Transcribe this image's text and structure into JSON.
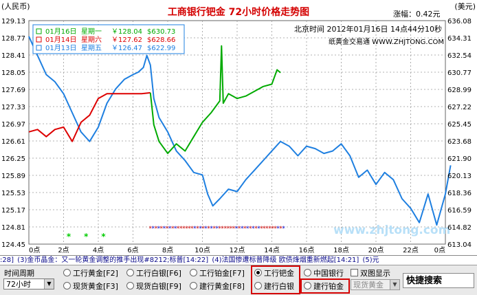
{
  "header": {
    "title": "工商银行钯金 72小时价格走势图",
    "left_unit": "(人民币)",
    "right_unit": "(美元)",
    "change": "涨幅：0.42元",
    "time": "北京时间 2012年01月16日 14点44分10秒",
    "source": "纸黄金交易通 WWW.ZHJTONG.COM",
    "watermark": "www.zhjtong.com"
  },
  "legend": [
    {
      "date": "01月16日",
      "weekday": "星期一",
      "cny": "￥128.04",
      "usd": "$630.73",
      "color": "#00aa00"
    },
    {
      "date": "01月14日",
      "weekday": "星期六",
      "cny": "￥127.62",
      "usd": "$628.66",
      "color": "#dd0000"
    },
    {
      "date": "01月13日",
      "weekday": "星期五",
      "cny": "￥126.47",
      "usd": "$622.99",
      "color": "#1e7fe0"
    }
  ],
  "chart_data": {
    "type": "line",
    "title": "工商银行钯金 72小时价格走势图",
    "x_ticks": [
      "0点",
      "2点",
      "4点",
      "6点",
      "8点",
      "10点",
      "12点",
      "14点",
      "16点",
      "18点",
      "20点",
      "22点",
      "0点"
    ],
    "y_left_ticks": [
      "129.13",
      "128.77",
      "128.41",
      "128.05",
      "127.69",
      "127.33",
      "126.97",
      "126.61",
      "126.25",
      "125.89",
      "125.53",
      "125.17",
      "124.81",
      "124.45"
    ],
    "y_right_ticks": [
      "636.08",
      "634.31",
      "632.54",
      "630.77",
      "628.99",
      "627.22",
      "625.45",
      "623.68",
      "621.90",
      "620.13",
      "618.36",
      "616.59",
      "614.82",
      "613.04"
    ],
    "ylim_left": [
      124.45,
      129.13
    ],
    "ylim_right": [
      613.04,
      636.08
    ],
    "xlim": [
      0,
      24
    ],
    "series": [
      {
        "name": "01月13日 星期五",
        "color": "#1e7fe0",
        "points": [
          [
            0,
            128.8
          ],
          [
            0.5,
            128.4
          ],
          [
            1,
            128.0
          ],
          [
            1.5,
            127.85
          ],
          [
            2,
            127.6
          ],
          [
            2.5,
            127.2
          ],
          [
            3,
            126.8
          ],
          [
            3.5,
            126.6
          ],
          [
            4,
            126.9
          ],
          [
            4.5,
            127.4
          ],
          [
            5,
            127.7
          ],
          [
            5.5,
            127.9
          ],
          [
            6,
            128.0
          ],
          [
            6.3,
            128.05
          ],
          [
            6.6,
            128.15
          ],
          [
            6.8,
            128.4
          ],
          [
            7,
            128.2
          ],
          [
            7.2,
            127.5
          ],
          [
            7.5,
            127.1
          ],
          [
            8,
            126.8
          ],
          [
            8.5,
            126.4
          ],
          [
            9,
            126.2
          ],
          [
            9.5,
            125.95
          ],
          [
            10,
            125.9
          ],
          [
            10.3,
            125.5
          ],
          [
            10.6,
            125.25
          ],
          [
            11,
            125.4
          ],
          [
            11.5,
            125.6
          ],
          [
            12,
            125.55
          ],
          [
            12.5,
            125.8
          ],
          [
            13,
            126.0
          ],
          [
            13.5,
            126.2
          ],
          [
            14,
            126.4
          ],
          [
            14.5,
            126.6
          ],
          [
            15,
            126.5
          ],
          [
            15.5,
            126.3
          ],
          [
            16,
            126.5
          ],
          [
            16.5,
            126.45
          ],
          [
            17,
            126.35
          ],
          [
            17.5,
            126.4
          ],
          [
            18,
            126.55
          ],
          [
            18.5,
            126.3
          ],
          [
            19,
            125.85
          ],
          [
            19.5,
            126.0
          ],
          [
            20,
            125.7
          ],
          [
            20.5,
            125.95
          ],
          [
            21,
            125.8
          ],
          [
            21.5,
            125.4
          ],
          [
            22,
            125.2
          ],
          [
            22.5,
            124.9
          ],
          [
            23,
            125.5
          ],
          [
            23.5,
            124.85
          ],
          [
            24,
            125.5
          ],
          [
            24.3,
            126.1
          ]
        ]
      },
      {
        "name": "01月14日 星期六",
        "color": "#dd0000",
        "points": [
          [
            0,
            126.8
          ],
          [
            0.5,
            126.85
          ],
          [
            1,
            126.7
          ],
          [
            1.5,
            126.85
          ],
          [
            2,
            126.9
          ],
          [
            2.5,
            126.6
          ],
          [
            3,
            127.0
          ],
          [
            3.5,
            127.15
          ],
          [
            4,
            127.5
          ],
          [
            4.5,
            127.6
          ],
          [
            5,
            127.6
          ],
          [
            5.5,
            127.6
          ],
          [
            6,
            127.6
          ],
          [
            6.5,
            127.6
          ],
          [
            7,
            127.62
          ]
        ]
      },
      {
        "name": "01月16日 星期一",
        "color": "#00aa00",
        "points": [
          [
            7,
            127.62
          ],
          [
            7.2,
            126.95
          ],
          [
            7.5,
            126.6
          ],
          [
            8,
            126.35
          ],
          [
            8.5,
            126.55
          ],
          [
            9,
            126.4
          ],
          [
            9.5,
            126.7
          ],
          [
            10,
            127.0
          ],
          [
            10.5,
            127.2
          ],
          [
            11,
            127.45
          ],
          [
            11.1,
            128.6
          ],
          [
            11.2,
            127.4
          ],
          [
            11.5,
            127.6
          ],
          [
            12,
            127.5
          ],
          [
            12.5,
            127.55
          ],
          [
            13,
            127.65
          ],
          [
            13.5,
            127.75
          ],
          [
            14,
            127.8
          ],
          [
            14.3,
            128.1
          ],
          [
            14.5,
            128.04
          ]
        ]
      }
    ]
  },
  "ticker": {
    "items": [
      ":28]",
      "(3)金币晶金：又一轮黄金调整的推手出现#8212;标普[14:22]",
      "(4)法国惨遭标普降级 欧债烽烟重新燃起[14:21]",
      "(5)元"
    ]
  },
  "controls": {
    "period_label": "时间周期",
    "period_value": "72小时",
    "radios_row1": [
      "工行黄金[F2]",
      "工行白银[F6]",
      "工行铂金[F7]",
      "工行钯金",
      "中国银行"
    ],
    "radios_row2": [
      "现货黄金[F3]",
      "现货白银[F9]",
      "建行黄金[F8]",
      "建行白银",
      "建行铂金"
    ],
    "dual_chart_label": "双图显示",
    "gold_select_value": "现货黄金",
    "search_label": "快捷搜索"
  }
}
